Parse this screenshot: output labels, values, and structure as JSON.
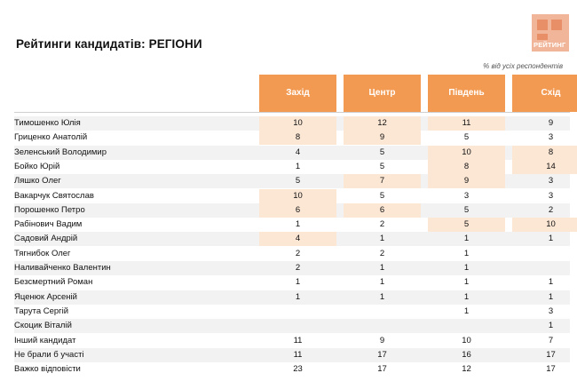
{
  "title": "Рейтинги кандидатів: РЕГІОНИ",
  "subtitle": "% від усіх респондентів",
  "logo_text": "РЕЙТИНГ",
  "colors": {
    "header": "#f39a52",
    "highlight": "#fce6d4",
    "stripe": "#f2f2f2"
  },
  "columns": [
    "Захід",
    "Центр",
    "Південь",
    "Схід"
  ],
  "rows": [
    {
      "name": "Тимошенко Юлія",
      "values": [
        "10",
        "12",
        "11",
        "9"
      ],
      "highlight": [
        true,
        true,
        true,
        false
      ]
    },
    {
      "name": "Гриценко Анатолій",
      "values": [
        "8",
        "9",
        "5",
        "3"
      ],
      "highlight": [
        true,
        true,
        false,
        false
      ]
    },
    {
      "name": "Зеленський Володимир",
      "values": [
        "4",
        "5",
        "10",
        "8"
      ],
      "highlight": [
        false,
        false,
        true,
        true
      ]
    },
    {
      "name": "Бойко Юрій",
      "values": [
        "1",
        "5",
        "8",
        "14"
      ],
      "highlight": [
        false,
        false,
        true,
        true
      ]
    },
    {
      "name": "Ляшко Олег",
      "values": [
        "5",
        "7",
        "9",
        "3"
      ],
      "highlight": [
        false,
        true,
        true,
        false
      ]
    },
    {
      "name": "Вакарчук Святослав",
      "values": [
        "10",
        "5",
        "3",
        "3"
      ],
      "highlight": [
        true,
        false,
        false,
        false
      ]
    },
    {
      "name": "Порошенко Петро",
      "values": [
        "6",
        "6",
        "5",
        "2"
      ],
      "highlight": [
        true,
        true,
        false,
        false
      ]
    },
    {
      "name": "Рабінович Вадим",
      "values": [
        "1",
        "2",
        "5",
        "10"
      ],
      "highlight": [
        false,
        false,
        true,
        true
      ]
    },
    {
      "name": "Садовий Андрій",
      "values": [
        "4",
        "1",
        "1",
        "1"
      ],
      "highlight": [
        true,
        false,
        false,
        false
      ]
    },
    {
      "name": "Тягнибок Олег",
      "values": [
        "2",
        "2",
        "1",
        ""
      ],
      "highlight": [
        false,
        false,
        false,
        false
      ]
    },
    {
      "name": "Наливайченко Валентин",
      "values": [
        "2",
        "1",
        "1",
        ""
      ],
      "highlight": [
        false,
        false,
        false,
        false
      ]
    },
    {
      "name": "Безсмертний Роман",
      "values": [
        "1",
        "1",
        "1",
        "1"
      ],
      "highlight": [
        false,
        false,
        false,
        false
      ]
    },
    {
      "name": "Яценюк Арсеній",
      "values": [
        "1",
        "1",
        "1",
        "1"
      ],
      "highlight": [
        false,
        false,
        false,
        false
      ]
    },
    {
      "name": "Тарута Сергій",
      "values": [
        "",
        "",
        "1",
        "3"
      ],
      "highlight": [
        false,
        false,
        false,
        false
      ]
    },
    {
      "name": "Скоцик Віталій",
      "values": [
        "",
        "",
        "",
        "1"
      ],
      "highlight": [
        false,
        false,
        false,
        false
      ]
    },
    {
      "name": "Інший кандидат",
      "values": [
        "11",
        "9",
        "10",
        "7"
      ],
      "highlight": [
        false,
        false,
        false,
        false
      ]
    },
    {
      "name": "Не брали б участі",
      "values": [
        "11",
        "17",
        "16",
        "17"
      ],
      "highlight": [
        false,
        false,
        false,
        false
      ]
    },
    {
      "name": "Важко відповісти",
      "values": [
        "23",
        "17",
        "12",
        "17"
      ],
      "highlight": [
        false,
        false,
        false,
        false
      ]
    }
  ]
}
